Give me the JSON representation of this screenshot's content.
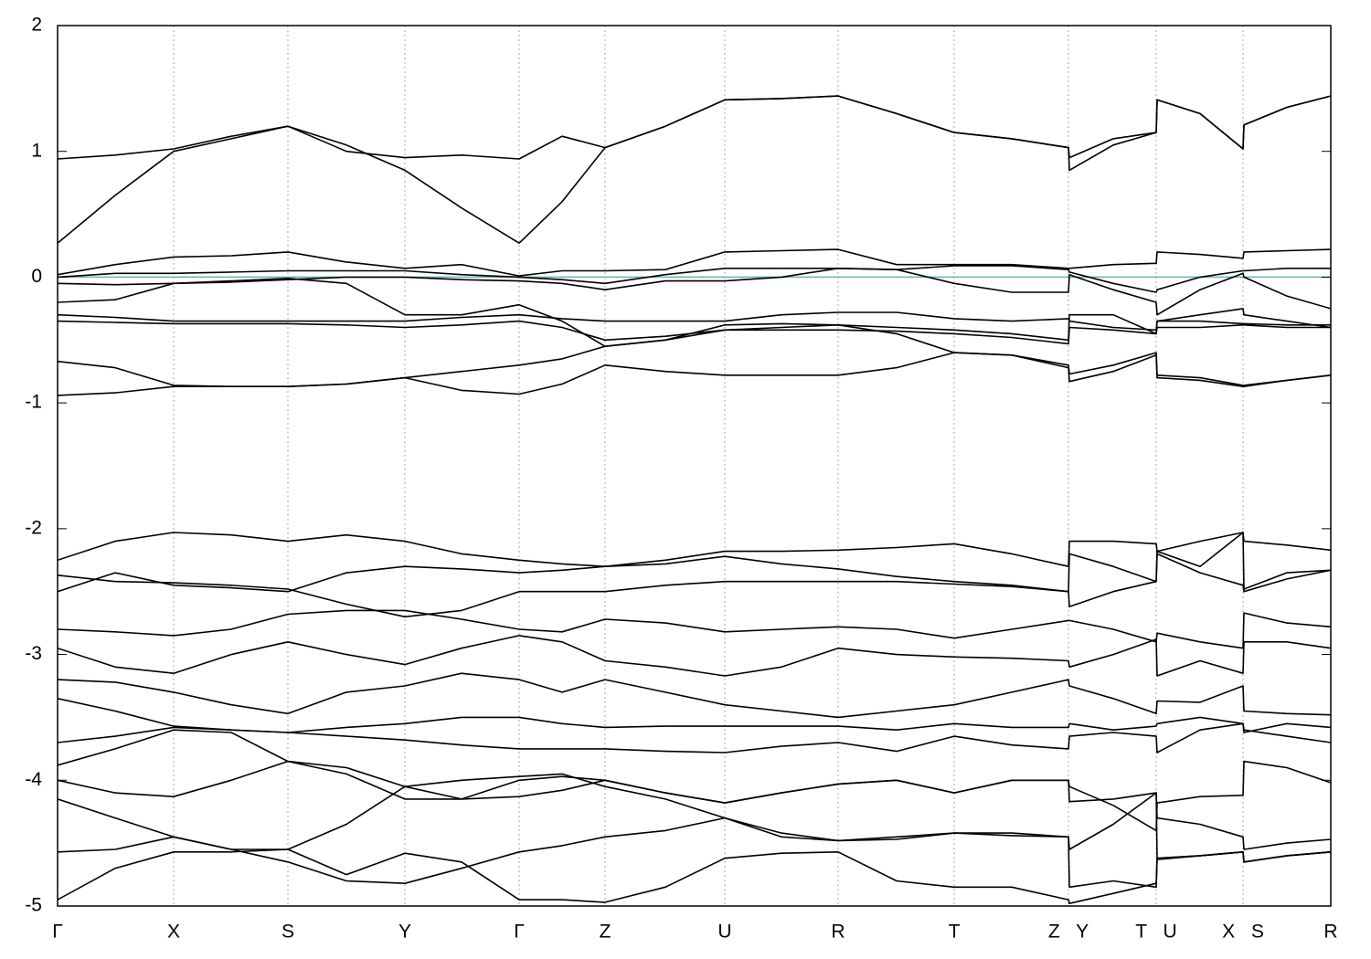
{
  "chart_data": {
    "type": "line",
    "color": "#000000",
    "grid": true,
    "reference_line": {
      "value": 0,
      "color": "#5ab4c4"
    },
    "xlim": [
      0,
      1393
    ],
    "ylim": [
      -5,
      2
    ],
    "yticks": [
      -5,
      -4,
      -3,
      -2,
      -1,
      0,
      1,
      2
    ],
    "xticks": [
      {
        "value": 0,
        "label": "Γ"
      },
      {
        "value": 127,
        "label": "X"
      },
      {
        "value": 252,
        "label": "S"
      },
      {
        "value": 380,
        "label": "Y"
      },
      {
        "value": 505,
        "label": "Γ"
      },
      {
        "value": 599,
        "label": "Z"
      },
      {
        "value": 730,
        "label": "U"
      },
      {
        "value": 854,
        "label": "R"
      },
      {
        "value": 981,
        "label": "T"
      },
      {
        "value": 1106,
        "label": "Z Y"
      },
      {
        "value": 1202,
        "label": "T U"
      },
      {
        "value": 1297,
        "label": "X S"
      },
      {
        "value": 1393,
        "label": "R"
      }
    ],
    "x": [
      0,
      63,
      127,
      190,
      252,
      316,
      380,
      442,
      505,
      552,
      599,
      665,
      730,
      792,
      854,
      918,
      981,
      1044,
      1106,
      1107,
      1155,
      1202,
      1203,
      1250,
      1297,
      1298,
      1345,
      1393
    ],
    "series": [
      {
        "values": [
          0.94,
          0.97,
          1.02,
          1.12,
          1.2,
          1.0,
          0.95,
          0.97,
          0.94,
          1.12,
          1.03,
          1.2,
          1.41,
          1.42,
          1.44,
          1.3,
          1.15,
          1.1,
          1.03,
          0.95,
          1.1,
          1.15,
          1.41,
          1.3,
          1.02,
          1.21,
          1.35,
          1.44
        ]
      },
      {
        "values": [
          0.27,
          0.65,
          1.0,
          1.1,
          1.2,
          1.05,
          0.85,
          0.55,
          0.27,
          0.6,
          1.03,
          1.2,
          1.41,
          1.42,
          1.44,
          1.3,
          1.15,
          1.1,
          1.03,
          0.85,
          1.05,
          1.15,
          1.41,
          1.3,
          1.02,
          1.21,
          1.35,
          1.44
        ]
      },
      {
        "values": [
          0.02,
          0.1,
          0.16,
          0.17,
          0.2,
          0.12,
          0.07,
          0.1,
          0.01,
          0.05,
          0.05,
          0.06,
          0.2,
          0.21,
          0.22,
          0.1,
          0.1,
          0.1,
          0.07,
          0.07,
          0.1,
          0.11,
          0.2,
          0.18,
          0.15,
          0.2,
          0.21,
          0.22
        ]
      },
      {
        "values": [
          0.0,
          0.03,
          0.03,
          0.04,
          0.05,
          0.05,
          0.05,
          0.02,
          0.0,
          -0.02,
          -0.05,
          0.02,
          0.07,
          0.07,
          0.07,
          0.06,
          0.09,
          0.09,
          0.06,
          0.04,
          -0.05,
          -0.12,
          -0.1,
          0.0,
          0.05,
          0.05,
          0.07,
          0.07
        ]
      },
      {
        "values": [
          -0.05,
          -0.06,
          -0.05,
          -0.04,
          -0.02,
          0.0,
          0.0,
          -0.02,
          -0.03,
          -0.05,
          -0.1,
          -0.03,
          -0.03,
          0.0,
          0.07,
          0.06,
          -0.05,
          -0.12,
          -0.12,
          0.02,
          -0.1,
          -0.2,
          -0.3,
          -0.1,
          0.03,
          0.0,
          -0.15,
          -0.25
        ]
      },
      {
        "values": [
          -0.2,
          -0.18,
          -0.05,
          -0.03,
          -0.01,
          -0.05,
          -0.3,
          -0.3,
          -0.22,
          -0.35,
          -0.55,
          -0.5,
          -0.42,
          -0.4,
          -0.38,
          -0.4,
          -0.42,
          -0.45,
          -0.5,
          -0.3,
          -0.3,
          -0.45,
          -0.35,
          -0.35,
          -0.37,
          -0.37,
          -0.38,
          -0.38
        ]
      },
      {
        "values": [
          -0.3,
          -0.32,
          -0.35,
          -0.35,
          -0.35,
          -0.35,
          -0.35,
          -0.32,
          -0.3,
          -0.33,
          -0.35,
          -0.35,
          -0.35,
          -0.3,
          -0.28,
          -0.28,
          -0.33,
          -0.35,
          -0.33,
          -0.35,
          -0.4,
          -0.42,
          -0.35,
          -0.3,
          -0.25,
          -0.3,
          -0.35,
          -0.4
        ]
      },
      {
        "values": [
          -0.35,
          -0.36,
          -0.37,
          -0.37,
          -0.37,
          -0.38,
          -0.4,
          -0.38,
          -0.35,
          -0.4,
          -0.5,
          -0.47,
          -0.42,
          -0.42,
          -0.42,
          -0.43,
          -0.45,
          -0.48,
          -0.53,
          -0.4,
          -0.42,
          -0.45,
          -0.4,
          -0.4,
          -0.38,
          -0.38,
          -0.4,
          -0.4
        ]
      },
      {
        "values": [
          -0.67,
          -0.72,
          -0.86,
          -0.87,
          -0.87,
          -0.85,
          -0.8,
          -0.75,
          -0.7,
          -0.65,
          -0.55,
          -0.5,
          -0.38,
          -0.37,
          -0.38,
          -0.45,
          -0.6,
          -0.62,
          -0.7,
          -0.77,
          -0.7,
          -0.6,
          -0.78,
          -0.8,
          -0.86,
          -0.86,
          -0.82,
          -0.78
        ]
      },
      {
        "values": [
          -0.94,
          -0.92,
          -0.87,
          -0.87,
          -0.87,
          -0.85,
          -0.8,
          -0.9,
          -0.93,
          -0.85,
          -0.7,
          -0.75,
          -0.78,
          -0.78,
          -0.78,
          -0.72,
          -0.6,
          -0.62,
          -0.72,
          -0.83,
          -0.75,
          -0.62,
          -0.8,
          -0.82,
          -0.87,
          -0.87,
          -0.82,
          -0.78
        ]
      },
      {
        "values": [
          -2.25,
          -2.1,
          -2.03,
          -2.05,
          -2.1,
          -2.05,
          -2.1,
          -2.2,
          -2.25,
          -2.28,
          -2.3,
          -2.25,
          -2.18,
          -2.18,
          -2.17,
          -2.15,
          -2.12,
          -2.2,
          -2.3,
          -2.1,
          -2.1,
          -2.12,
          -2.18,
          -2.1,
          -2.03,
          -2.1,
          -2.13,
          -2.17
        ]
      },
      {
        "values": [
          -2.5,
          -2.35,
          -2.45,
          -2.47,
          -2.5,
          -2.35,
          -2.3,
          -2.32,
          -2.35,
          -2.33,
          -2.3,
          -2.28,
          -2.22,
          -2.28,
          -2.32,
          -2.38,
          -2.42,
          -2.45,
          -2.5,
          -2.2,
          -2.3,
          -2.42,
          -2.18,
          -2.3,
          -2.03,
          -2.48,
          -2.35,
          -2.33
        ]
      },
      {
        "values": [
          -2.37,
          -2.42,
          -2.43,
          -2.45,
          -2.48,
          -2.6,
          -2.7,
          -2.65,
          -2.5,
          -2.5,
          -2.5,
          -2.45,
          -2.42,
          -2.42,
          -2.42,
          -2.42,
          -2.44,
          -2.46,
          -2.5,
          -2.62,
          -2.5,
          -2.42,
          -2.2,
          -2.35,
          -2.45,
          -2.5,
          -2.4,
          -2.33
        ]
      },
      {
        "values": [
          -2.8,
          -2.82,
          -2.85,
          -2.8,
          -2.68,
          -2.65,
          -2.65,
          -2.72,
          -2.8,
          -2.82,
          -2.72,
          -2.75,
          -2.82,
          -2.8,
          -2.78,
          -2.8,
          -2.87,
          -2.8,
          -2.73,
          -2.73,
          -2.8,
          -2.9,
          -2.83,
          -2.9,
          -2.95,
          -2.67,
          -2.75,
          -2.78
        ]
      },
      {
        "values": [
          -2.95,
          -3.1,
          -3.15,
          -3.0,
          -2.9,
          -3.0,
          -3.08,
          -2.95,
          -2.85,
          -2.9,
          -3.05,
          -3.1,
          -3.17,
          -3.1,
          -2.95,
          -3.0,
          -3.02,
          -3.03,
          -3.05,
          -3.1,
          -3.0,
          -2.88,
          -3.17,
          -3.05,
          -3.15,
          -2.9,
          -2.9,
          -2.95
        ]
      },
      {
        "values": [
          -3.2,
          -3.22,
          -3.3,
          -3.4,
          -3.47,
          -3.3,
          -3.25,
          -3.15,
          -3.2,
          -3.3,
          -3.2,
          -3.3,
          -3.4,
          -3.45,
          -3.5,
          -3.45,
          -3.4,
          -3.3,
          -3.2,
          -3.25,
          -3.35,
          -3.47,
          -3.37,
          -3.38,
          -3.25,
          -3.45,
          -3.47,
          -3.48
        ]
      },
      {
        "values": [
          -3.35,
          -3.45,
          -3.57,
          -3.6,
          -3.62,
          -3.58,
          -3.55,
          -3.5,
          -3.5,
          -3.55,
          -3.58,
          -3.57,
          -3.57,
          -3.57,
          -3.57,
          -3.6,
          -3.55,
          -3.58,
          -3.58,
          -3.55,
          -3.6,
          -3.57,
          -3.55,
          -3.5,
          -3.55,
          -3.62,
          -3.55,
          -3.58
        ]
      },
      {
        "values": [
          -3.7,
          -3.65,
          -3.58,
          -3.6,
          -3.62,
          -3.65,
          -3.68,
          -3.72,
          -3.75,
          -3.75,
          -3.75,
          -3.77,
          -3.78,
          -3.73,
          -3.7,
          -3.77,
          -3.65,
          -3.72,
          -3.75,
          -3.65,
          -3.62,
          -3.65,
          -3.78,
          -3.6,
          -3.55,
          -3.6,
          -3.65,
          -3.7
        ]
      },
      {
        "values": [
          -3.88,
          -3.75,
          -3.6,
          -3.62,
          -3.85,
          -3.9,
          -4.05,
          -4.15,
          -4.13,
          -4.08,
          -4.0,
          -4.1,
          -4.18,
          -4.1,
          -4.03,
          -4.0,
          -4.1,
          -4.0,
          -4.0,
          -4.05,
          -4.2,
          -4.4,
          -4.18,
          -4.13,
          -4.12,
          -3.85,
          -3.9,
          -4.02
        ]
      },
      {
        "values": [
          -4.0,
          -4.1,
          -4.13,
          -4.0,
          -3.85,
          -3.95,
          -4.15,
          -4.15,
          -4.0,
          -3.97,
          -4.0,
          -4.1,
          -4.18,
          -4.1,
          -4.03,
          -4.0,
          -4.1,
          -4.0,
          -4.0,
          -4.17,
          -4.15,
          -4.1,
          -4.3,
          -4.35,
          -4.45,
          -4.55,
          -4.5,
          -4.47
        ]
      },
      {
        "values": [
          -4.15,
          -4.3,
          -4.45,
          -4.55,
          -4.55,
          -4.35,
          -4.05,
          -4.0,
          -3.97,
          -3.95,
          -4.05,
          -4.15,
          -4.3,
          -4.42,
          -4.48,
          -4.45,
          -4.42,
          -4.44,
          -4.45,
          -4.55,
          -4.35,
          -4.1,
          -4.63,
          -4.6,
          -4.57,
          -4.65,
          -4.6,
          -4.57
        ]
      },
      {
        "values": [
          -4.57,
          -4.55,
          -4.45,
          -4.55,
          -4.65,
          -4.8,
          -4.82,
          -4.7,
          -4.57,
          -4.52,
          -4.45,
          -4.4,
          -4.3,
          -4.45,
          -4.48,
          -4.47,
          -4.42,
          -4.42,
          -4.45,
          -4.85,
          -4.8,
          -4.85,
          -4.62,
          -4.6,
          -4.57,
          -4.65,
          -4.6,
          -4.57
        ]
      },
      {
        "values": [
          -4.95,
          -4.7,
          -4.57,
          -4.57,
          -4.55,
          -4.75,
          -4.58,
          -4.65,
          -4.95,
          -4.95,
          -4.97,
          -4.85,
          -4.62,
          -4.58,
          -4.57,
          -4.8,
          -4.85,
          -4.85,
          -4.95,
          -4.98,
          -4.9,
          -4.82,
          -4.62,
          -4.6,
          -4.57,
          -4.65,
          -4.6,
          -4.57
        ]
      }
    ]
  }
}
